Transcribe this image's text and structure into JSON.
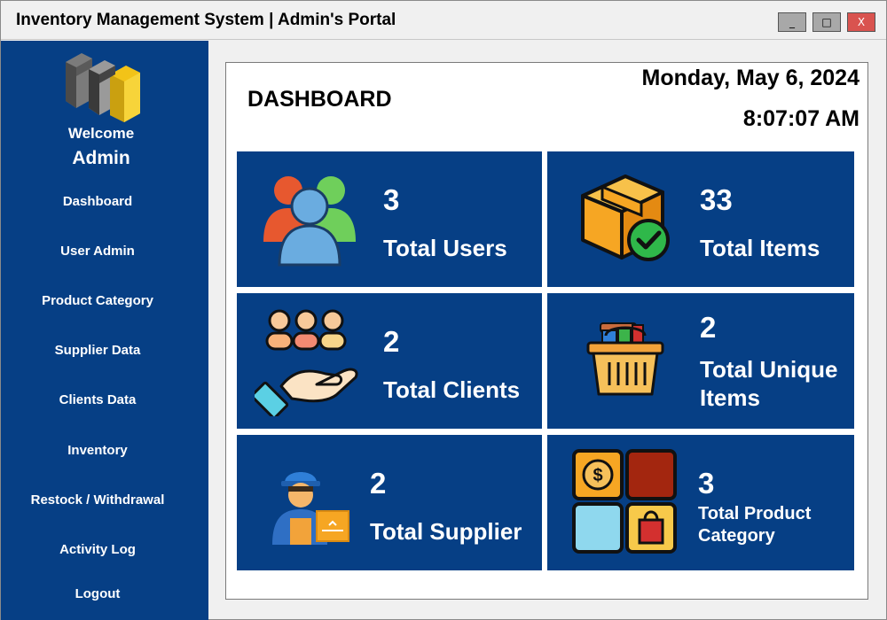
{
  "window": {
    "title": "Inventory Management System | Admin's Portal",
    "controls": {
      "minimize": "_",
      "maximize": "□",
      "close": "X"
    }
  },
  "sidebar": {
    "welcome": "Welcome",
    "user": "Admin",
    "items": [
      {
        "label": "Dashboard"
      },
      {
        "label": "User Admin"
      },
      {
        "label": "Product Category"
      },
      {
        "label": "Supplier Data"
      },
      {
        "label": "Clients Data"
      },
      {
        "label": "Inventory"
      },
      {
        "label": "Restock / Withdrawal"
      },
      {
        "label": "Activity Log"
      },
      {
        "label": "Logout"
      }
    ]
  },
  "dashboard": {
    "title": "DASHBOARD",
    "date": "Monday, May 6, 2024",
    "time": "8:07:07 AM",
    "cards": [
      {
        "value": "3",
        "label": "Total Users",
        "icon": "users-icon"
      },
      {
        "value": "33",
        "label": "Total Items",
        "icon": "box-check-icon"
      },
      {
        "value": "2",
        "label": "Total Clients",
        "icon": "clients-hand-icon"
      },
      {
        "value": "2",
        "label": "Total Unique Items",
        "icon": "basket-icon"
      },
      {
        "value": "2",
        "label": "Total Supplier",
        "icon": "supplier-worker-icon"
      },
      {
        "value": "3",
        "label": "Total Product Category",
        "icon": "category-grid-icon"
      }
    ]
  },
  "colors": {
    "sidebar": "#063f85",
    "card": "#063f85",
    "close_button": "#d9534f"
  }
}
